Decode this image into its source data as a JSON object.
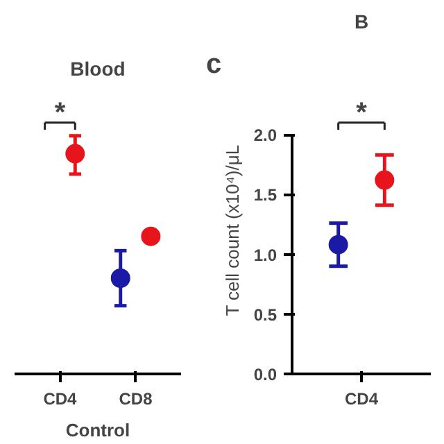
{
  "chart_data": [
    {
      "type": "scatter",
      "title": "Blood",
      "xlabel": "Control",
      "categories": [
        "CD4",
        "CD8"
      ],
      "marker": "circle",
      "annotations": [
        "*"
      ],
      "tick_labels": "x",
      "ylim": [
        0,
        2.0
      ],
      "series": [
        {
          "color": "#1a1aa6",
          "values": [
            null,
            0.8
          ],
          "errors": [
            null,
            [
              0.57,
              1.03
            ]
          ]
        },
        {
          "color": "#e8141c",
          "values": [
            1.84,
            1.15
          ],
          "errors": [
            [
              1.67,
              1.99
            ],
            null
          ]
        }
      ]
    },
    {
      "type": "scatter",
      "title": "B",
      "ylabel": "T cell count (x10⁴)/μL",
      "categories": [
        "CD4"
      ],
      "marker": "circle",
      "annotations": [
        "c",
        "*"
      ],
      "ylim": [
        0,
        2.0
      ],
      "yticks": [
        {
          "value": 0,
          "label": "0.0"
        },
        {
          "value": 0.5,
          "label": "0.5"
        },
        {
          "value": 1.0,
          "label": "1.0"
        },
        {
          "value": 1.5,
          "label": "1.5"
        },
        {
          "value": 2.0,
          "label": "2.0"
        }
      ],
      "series": [
        {
          "color": "#1a1aa6",
          "values": [
            1.08
          ],
          "errors": [
            [
              0.9,
              1.26
            ]
          ]
        },
        {
          "color": "#e8141c",
          "values": [
            1.62
          ],
          "errors": [
            [
              1.41,
              1.83
            ]
          ]
        }
      ]
    }
  ]
}
